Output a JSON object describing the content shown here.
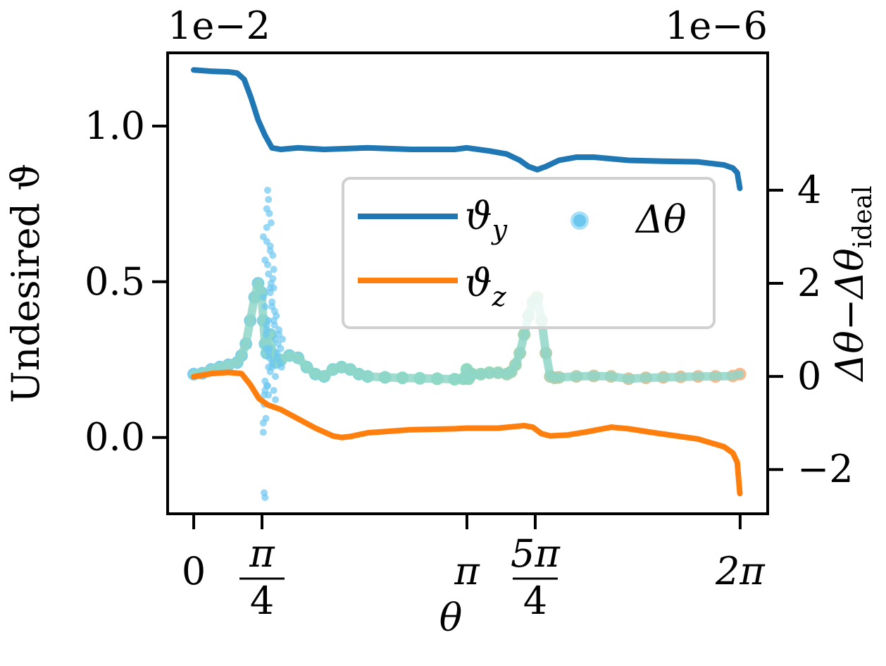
{
  "chart_data": {
    "type": "line",
    "xlabel": "θ",
    "ylabel_left": "Undesired ϑ",
    "ylabel_right_main": "Δθ",
    "ylabel_right_minus": "−",
    "ylabel_right_sub": "ideal",
    "left_offset_label": "1e−2",
    "right_offset_label": "1e−6",
    "xlim": [
      -0.3,
      6.6
    ],
    "ylim_left": [
      -0.245,
      1.235
    ],
    "ylim_right": [
      -2.95,
      6.95
    ],
    "x_ticks": [
      {
        "value": 0,
        "label": "0",
        "num": "0",
        "den": ""
      },
      {
        "value": 0.7854,
        "label": "π/4",
        "num": "π",
        "den": "4"
      },
      {
        "value": 3.1416,
        "label": "π",
        "num": "π",
        "den": ""
      },
      {
        "value": 3.927,
        "label": "5π/4",
        "num": "5π",
        "den": "4"
      },
      {
        "value": 6.2832,
        "label": "2π",
        "num": "2π",
        "den": ""
      }
    ],
    "y_left_ticks": [
      {
        "value": 0.0,
        "label": "0.0"
      },
      {
        "value": 0.5,
        "label": "0.5"
      },
      {
        "value": 1.0,
        "label": "1.0"
      }
    ],
    "y_right_ticks": [
      {
        "value": -2,
        "label": "−2"
      },
      {
        "value": 0,
        "label": "0"
      },
      {
        "value": 2,
        "label": "2"
      },
      {
        "value": 4,
        "label": "4"
      }
    ],
    "legend": {
      "placement": "center-right",
      "entries": [
        {
          "symbol": "line",
          "label_main": "ϑ",
          "label_sub": "y",
          "color": "#1f77b4"
        },
        {
          "symbol": "line",
          "label_main": "ϑ",
          "label_sub": "z",
          "color": "#ff7f0e"
        },
        {
          "symbol": "marker",
          "label_main": "Δθ",
          "label_sub": "",
          "color": "#6cc7ef"
        }
      ]
    },
    "series": [
      {
        "name": "ϑy",
        "axis": "left",
        "color": "#1f77b4",
        "x": [
          0,
          0.2,
          0.4,
          0.5,
          0.58,
          0.66,
          0.74,
          0.82,
          0.9,
          1.0,
          1.2,
          1.5,
          2.0,
          2.5,
          3.0,
          3.14,
          3.4,
          3.6,
          3.75,
          3.85,
          3.95,
          4.05,
          4.2,
          4.4,
          4.6,
          4.8,
          5.0,
          5.4,
          5.8,
          6.1,
          6.2,
          6.25,
          6.28
        ],
        "y": [
          1.18,
          1.176,
          1.174,
          1.17,
          1.15,
          1.09,
          1.02,
          0.97,
          0.93,
          0.925,
          0.93,
          0.925,
          0.93,
          0.925,
          0.925,
          0.93,
          0.92,
          0.91,
          0.89,
          0.87,
          0.86,
          0.87,
          0.89,
          0.9,
          0.9,
          0.895,
          0.89,
          0.887,
          0.885,
          0.875,
          0.865,
          0.85,
          0.8
        ]
      },
      {
        "name": "ϑz",
        "axis": "left",
        "color": "#ff7f0e",
        "x": [
          0,
          0.2,
          0.4,
          0.55,
          0.65,
          0.75,
          0.85,
          1.0,
          1.2,
          1.4,
          1.6,
          1.7,
          1.8,
          2.0,
          2.5,
          3.0,
          3.14,
          3.5,
          3.8,
          3.9,
          4.0,
          4.1,
          4.3,
          4.5,
          4.8,
          5.0,
          5.3,
          5.8,
          6.1,
          6.2,
          6.25,
          6.28
        ],
        "y": [
          0.195,
          0.205,
          0.209,
          0.205,
          0.17,
          0.125,
          0.105,
          0.09,
          0.06,
          0.03,
          0.005,
          0.0,
          0.003,
          0.015,
          0.025,
          0.028,
          0.03,
          0.03,
          0.038,
          0.033,
          0.012,
          0.005,
          0.008,
          0.017,
          0.033,
          0.028,
          0.015,
          -0.005,
          -0.03,
          -0.05,
          -0.08,
          -0.18
        ]
      },
      {
        "name": "Δθ",
        "axis": "right",
        "type": "scatter",
        "color_start": "#6cc7ef",
        "color_mid": "#7fd8b8",
        "color_end": "#ffb07f",
        "x": [
          0,
          0.1,
          0.2,
          0.3,
          0.4,
          0.5,
          0.55,
          0.6,
          0.65,
          0.7,
          0.74,
          0.78,
          0.8,
          0.82,
          0.84,
          0.86,
          0.88,
          0.9,
          0.95,
          1.0,
          1.1,
          1.2,
          1.3,
          1.4,
          1.5,
          1.6,
          1.7,
          1.8,
          1.9,
          2.0,
          2.2,
          2.4,
          2.6,
          2.8,
          3.0,
          3.1,
          3.14,
          3.16,
          3.2,
          3.3,
          3.4,
          3.5,
          3.6,
          3.65,
          3.7,
          3.75,
          3.8,
          3.85,
          3.9,
          3.95,
          4.0,
          4.05,
          4.1,
          4.15,
          4.2,
          4.4,
          4.6,
          4.8,
          5.0,
          5.2,
          5.4,
          5.6,
          5.8,
          6.0,
          6.2,
          6.28
        ],
        "y": [
          0.05,
          0.07,
          0.15,
          0.2,
          0.25,
          0.3,
          0.45,
          0.7,
          1.2,
          1.7,
          2.0,
          1.8,
          1.2,
          0.7,
          0.5,
          0.6,
          0.9,
          0.5,
          0.3,
          0.35,
          0.45,
          0.4,
          0.2,
          0.05,
          0.0,
          0.15,
          0.2,
          0.15,
          0.05,
          0.0,
          -0.02,
          -0.03,
          -0.04,
          -0.05,
          -0.06,
          -0.05,
          0.15,
          -0.05,
          0.05,
          0.05,
          0.08,
          0.08,
          0.05,
          0.1,
          0.25,
          0.5,
          0.9,
          1.3,
          1.6,
          1.7,
          1.2,
          0.5,
          0.0,
          -0.03,
          -0.02,
          0.0,
          0.01,
          0.0,
          -0.05,
          -0.03,
          -0.02,
          -0.01,
          0.0,
          0.0,
          0.01,
          0.05
        ]
      },
      {
        "name": "Δθ scatter cloud",
        "axis": "right",
        "type": "scatter",
        "color": "#6cc7ef",
        "x": [
          0.8,
          0.81,
          0.82,
          0.83,
          0.84,
          0.85,
          0.86,
          0.87,
          0.88,
          0.89,
          0.9,
          0.91,
          0.92,
          0.93,
          0.94,
          0.95,
          0.96,
          0.97,
          0.98,
          0.99,
          1.0,
          1.01,
          1.02,
          0.8,
          0.82,
          0.84,
          0.86,
          0.88,
          0.9,
          0.92,
          0.94,
          0.96,
          0.98,
          0.8,
          0.82,
          0.84,
          0.86,
          0.88,
          0.9,
          0.92,
          0.94,
          0.81,
          0.83,
          0.85,
          0.87,
          0.89,
          0.91,
          0.93,
          0.82,
          0.84,
          0.86,
          0.88,
          0.9,
          0.92,
          0.84,
          0.86,
          0.88,
          0.81,
          0.83,
          0.85,
          0.87,
          0.8,
          0.82,
          0.84,
          0.86
        ],
        "y": [
          -1.2,
          -2.5,
          -2.6,
          -0.9,
          3.2,
          4.0,
          3.8,
          3.5,
          2.8,
          2.0,
          1.5,
          2.6,
          1.9,
          1.1,
          0.8,
          1.3,
          0.5,
          0.7,
          1.0,
          0.3,
          0.6,
          0.2,
          0.8,
          3.0,
          2.5,
          3.6,
          2.2,
          1.8,
          0.2,
          -0.3,
          -0.5,
          0.4,
          0.9,
          -1.0,
          1.5,
          2.9,
          1.2,
          0.1,
          1.6,
          2.3,
          0.0,
          -0.6,
          0.6,
          -0.2,
          0.4,
          3.3,
          2.1,
          1.4,
          -0.1,
          1.0,
          -0.4,
          2.7,
          0.3,
          1.2,
          -0.2,
          0.5,
          1.9,
          -0.4,
          0.9,
          2.4,
          0.6,
          1.7,
          -0.3,
          1.1,
          0.2
        ]
      }
    ]
  }
}
